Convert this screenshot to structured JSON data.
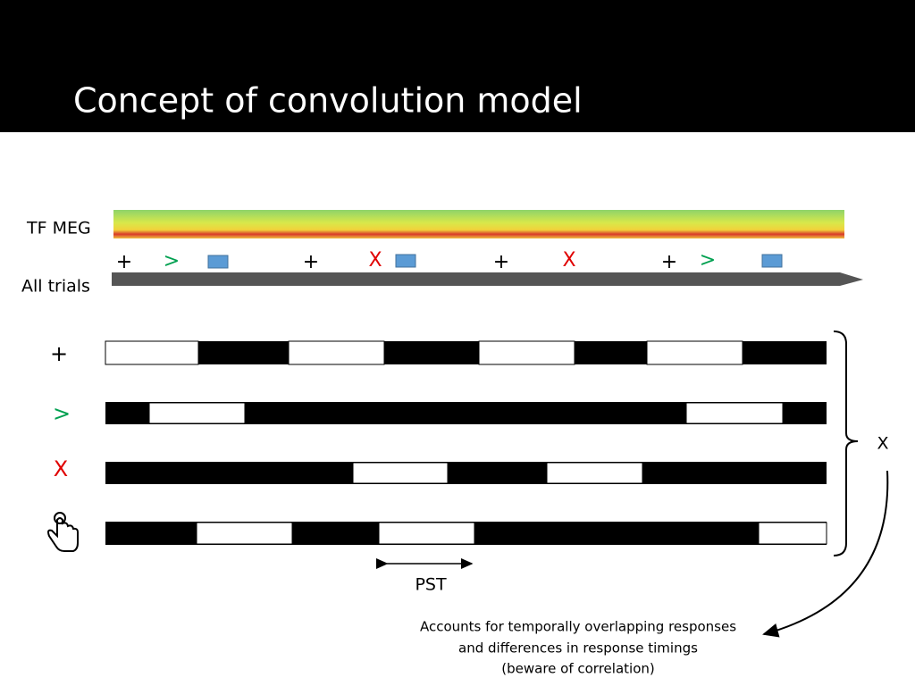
{
  "header": {
    "title": "Concept of convolution model"
  },
  "labels": {
    "tf_meg": "TF MEG",
    "all_trials": "All trials"
  },
  "timeline": {
    "events": [
      "+",
      ">",
      "+",
      "X",
      "+",
      "X",
      "+",
      ">"
    ]
  },
  "rows": {
    "labels": [
      "+",
      ">",
      "X"
    ]
  },
  "brace_label": "X",
  "pst_label": "PST",
  "note": {
    "lines": [
      "Accounts for temporally overlapping responses",
      "and differences in response timings",
      "(beware of correlation)"
    ]
  }
}
